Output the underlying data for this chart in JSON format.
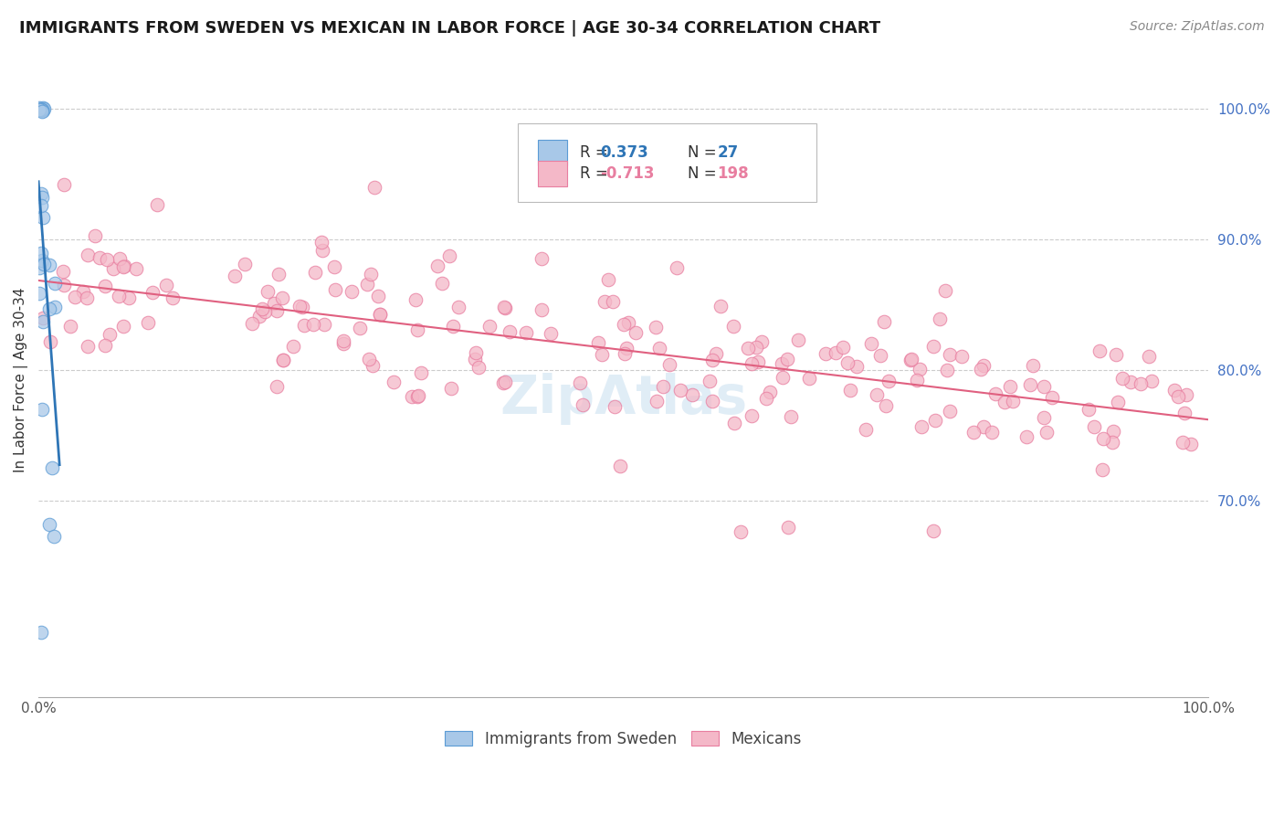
{
  "title": "IMMIGRANTS FROM SWEDEN VS MEXICAN IN LABOR FORCE | AGE 30-34 CORRELATION CHART",
  "source": "Source: ZipAtlas.com",
  "ylabel": "In Labor Force | Age 30-34",
  "legend_labels": [
    "Immigrants from Sweden",
    "Mexicans"
  ],
  "r_sweden": 0.373,
  "n_sweden": 27,
  "r_mexican": -0.713,
  "n_mexican": 198,
  "color_sweden": "#a8c8e8",
  "color_mexican": "#f4b8c8",
  "edge_sweden": "#5b9bd5",
  "edge_mexican": "#e87ea0",
  "trendline_sweden": "#2e75b6",
  "trendline_mexican": "#e06080",
  "background": "#ffffff",
  "grid_color": "#cccccc",
  "right_tick_color": "#4472c4",
  "xlim": [
    0.0,
    1.0
  ],
  "ylim": [
    0.55,
    1.035
  ],
  "right_yticks": [
    0.7,
    0.8,
    0.9,
    1.0
  ],
  "right_yticklabels": [
    "70.0%",
    "80.0%",
    "90.0%",
    "100.0%"
  ],
  "xtick_positions": [
    0.0,
    0.1,
    0.2,
    0.3,
    0.4,
    0.5,
    0.6,
    0.7,
    0.8,
    0.9,
    1.0
  ],
  "xticklabels_show": [
    "0.0%",
    "100.0%"
  ],
  "watermark": "ZipAtlas"
}
